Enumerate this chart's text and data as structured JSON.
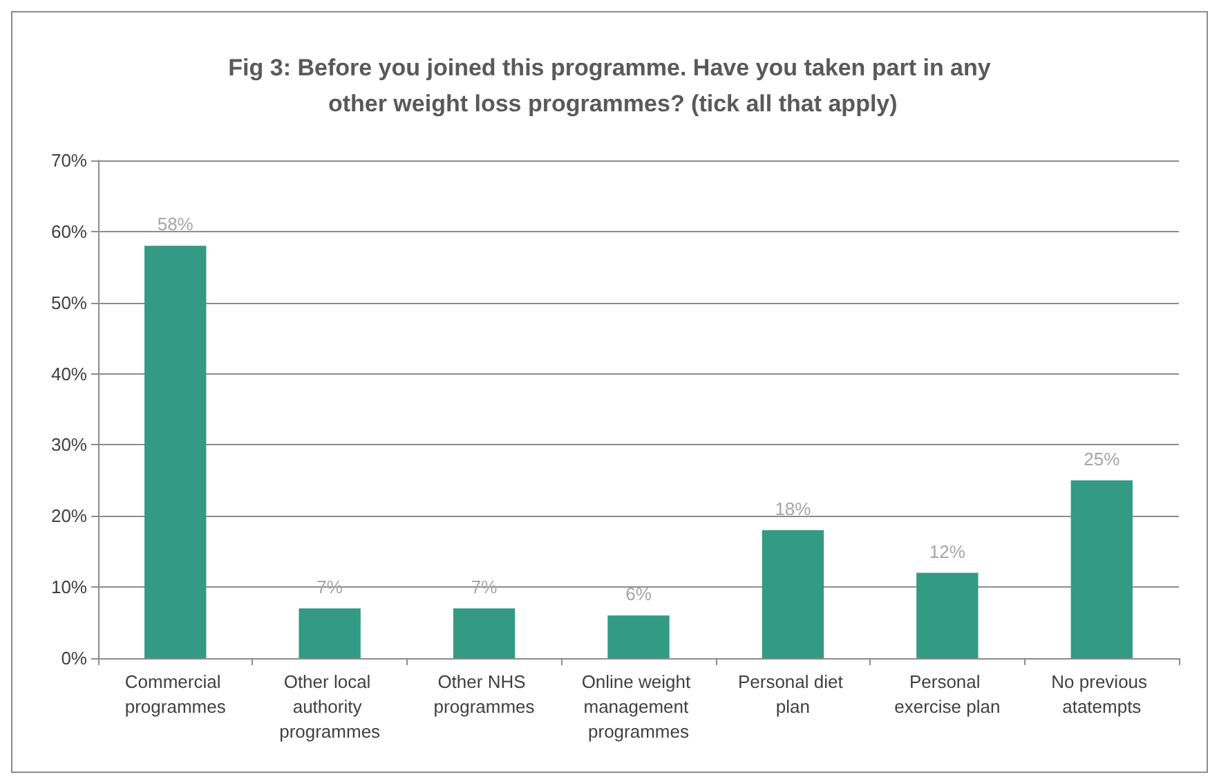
{
  "chart_data": {
    "type": "bar",
    "title": "Fig 3: Before you joined this programme. Have you taken part in any other weight loss programmes? (tick all that apply)",
    "categories": [
      "Commercial programmes",
      "Other local authority programmes",
      "Other NHS programmes",
      "Online weight management programmes",
      "Personal diet plan",
      "Personal exercise plan",
      "No previous atatempts"
    ],
    "values": [
      58,
      7,
      7,
      6,
      18,
      12,
      25
    ],
    "value_labels": [
      "58%",
      "7%",
      "7%",
      "6%",
      "18%",
      "12%",
      "25%"
    ],
    "color": "#339a84",
    "ylim": [
      0,
      70
    ],
    "yticks": [
      {
        "value": 0,
        "label": "0%"
      },
      {
        "value": 10,
        "label": "10%"
      },
      {
        "value": 20,
        "label": "20%"
      },
      {
        "value": 30,
        "label": "30%"
      },
      {
        "value": 40,
        "label": "40%"
      },
      {
        "value": 50,
        "label": "50%"
      },
      {
        "value": 60,
        "label": "60%"
      },
      {
        "value": 70,
        "label": "70%"
      }
    ],
    "grid": "y"
  }
}
